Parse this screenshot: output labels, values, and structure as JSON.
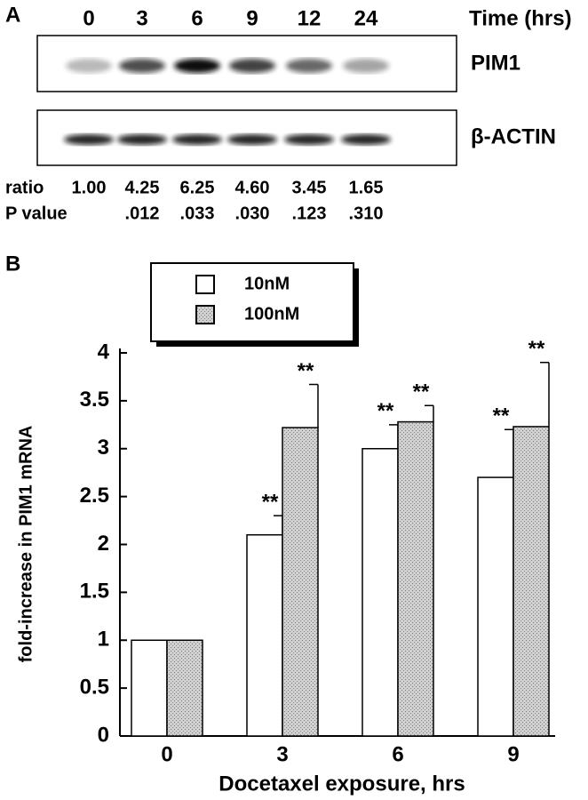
{
  "panel_a": {
    "panel_label": "A",
    "time_label": "Time (hrs)",
    "times": [
      "0",
      "3",
      "6",
      "9",
      "12",
      "24"
    ],
    "bands": [
      "PIM1",
      "β-ACTIN"
    ],
    "ratio_label": "ratio",
    "ratios": [
      "1.00",
      "4.25",
      "6.25",
      "4.60",
      "3.45",
      "1.65"
    ],
    "p_label": "P value",
    "p_values": [
      ".012",
      ".033",
      ".030",
      ".123",
      ".310"
    ]
  },
  "chart_data": {
    "type": "bar",
    "panel_label": "B",
    "x_label": "Docetaxel exposure, hrs",
    "y_label": "fold-increase in PIM1 mRNA",
    "categories": [
      "0",
      "3",
      "6",
      "9"
    ],
    "series": [
      {
        "name": "10nM",
        "color": "#ffffff",
        "values": [
          1,
          2.1,
          3.0,
          2.7
        ],
        "errors": [
          0,
          0.2,
          0.25,
          0.5
        ],
        "annotations": [
          null,
          "**",
          "**",
          "**"
        ]
      },
      {
        "name": "100nM",
        "color": "#c8c8c8",
        "values": [
          1,
          3.22,
          3.28,
          3.23
        ],
        "errors": [
          0,
          0.45,
          0.17,
          0.67
        ],
        "annotations": [
          null,
          "**",
          "**",
          "**"
        ]
      }
    ],
    "ylim": [
      0,
      4
    ],
    "yticks": [
      0,
      0.5,
      1,
      1.5,
      2,
      2.5,
      3,
      3.5,
      4
    ]
  }
}
